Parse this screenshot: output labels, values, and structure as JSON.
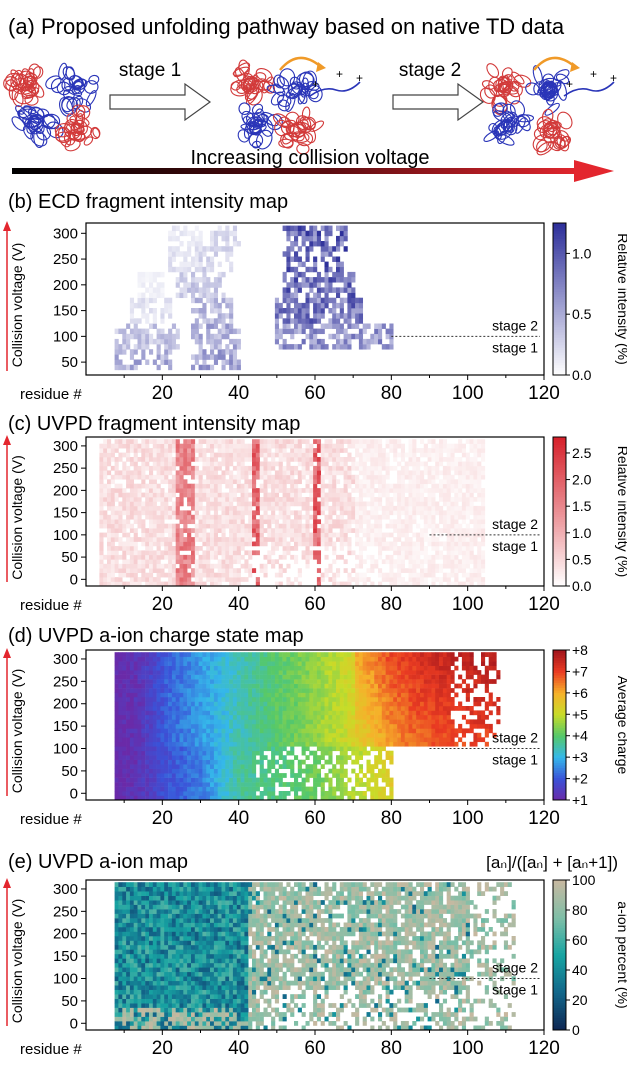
{
  "header": {
    "title": "(a) Proposed unfolding pathway based on native TD data",
    "stage1_label": "stage 1",
    "stage2_label": "stage 2",
    "arrow_label": "Increasing collision voltage"
  },
  "colors": {
    "protein_blue": "#2a35b8",
    "protein_red": "#d23a3a",
    "accent_orange": "#f09a28",
    "voltage_arrow_start": "#000000",
    "voltage_arrow_end": "#e3262e"
  },
  "chart_data": [
    {
      "type": "heatmap",
      "title": "(b) ECD fragment intensity map",
      "ylabel": "Collision voltage (V)",
      "xlabel": "residue #",
      "xlim": [
        0,
        120
      ],
      "ylim": [
        25,
        320
      ],
      "xticks": [
        20,
        40,
        60,
        80,
        100,
        120
      ],
      "yticks": [
        50,
        100,
        150,
        200,
        250,
        300
      ],
      "colorbar": {
        "label": "Relative intensity (%)",
        "min": 0.0,
        "max": 1.25,
        "ticks": [
          0.0,
          0.5,
          1.0
        ],
        "tick_labels": [
          "0.0",
          "0.5",
          "1.0"
        ],
        "colors": [
          "#ffffff",
          "#2d2f9a"
        ]
      },
      "annotations": [
        "stage 2",
        "stage 1"
      ],
      "divider_y": 100,
      "description_rows": [
        {
          "y": 300,
          "bands": [
            [
              22,
              30,
              0.15
            ],
            [
              32,
              40,
              0.25
            ],
            [
              52,
              68,
              1.0
            ]
          ]
        },
        {
          "y": 250,
          "bands": [
            [
              22,
              30,
              0.2
            ],
            [
              30,
              38,
              0.3
            ],
            [
              52,
              68,
              1.0
            ]
          ]
        },
        {
          "y": 200,
          "bands": [
            [
              14,
              20,
              0.1
            ],
            [
              24,
              36,
              0.35
            ],
            [
              52,
              70,
              0.95
            ]
          ]
        },
        {
          "y": 150,
          "bands": [
            [
              12,
              22,
              0.2
            ],
            [
              28,
              38,
              0.45
            ],
            [
              50,
              72,
              0.9
            ]
          ]
        },
        {
          "y": 100,
          "bands": [
            [
              8,
              24,
              0.4
            ],
            [
              28,
              40,
              0.55
            ],
            [
              50,
              80,
              0.7
            ]
          ]
        },
        {
          "y": 50,
          "bands": [
            [
              8,
              22,
              0.55
            ],
            [
              28,
              40,
              0.6
            ]
          ]
        }
      ]
    },
    {
      "type": "heatmap",
      "title": "(c) UVPD fragment intensity map",
      "ylabel": "Collision voltage (V)",
      "xlabel": "residue #",
      "xlim": [
        0,
        120
      ],
      "ylim": [
        -15,
        320
      ],
      "xticks": [
        20,
        40,
        60,
        80,
        100,
        120
      ],
      "yticks": [
        0,
        50,
        100,
        150,
        200,
        250,
        300
      ],
      "colorbar": {
        "label": "Relative intensity (%)",
        "min": 0.0,
        "max": 2.8,
        "ticks": [
          0.0,
          0.5,
          1.0,
          1.5,
          2.0,
          2.5
        ],
        "tick_labels": [
          "0.0",
          "0.5",
          "1.0",
          "1.5",
          "2.0",
          "2.5"
        ],
        "colors": [
          "#ffffff",
          "#d6202a"
        ]
      },
      "annotations": [
        "stage 2",
        "stage 1"
      ],
      "divider_y": 100,
      "hot_columns": [
        [
          24,
          28,
          0.7
        ],
        [
          44,
          45,
          0.85
        ],
        [
          60,
          61,
          0.9
        ]
      ]
    },
    {
      "type": "heatmap",
      "title": "(d) UVPD a-ion charge state map",
      "ylabel": "Collision voltage (V)",
      "xlabel": "residue #",
      "xlim": [
        0,
        120
      ],
      "ylim": [
        -15,
        320
      ],
      "xticks": [
        20,
        40,
        60,
        80,
        100,
        120
      ],
      "yticks": [
        0,
        50,
        100,
        150,
        200,
        250,
        300
      ],
      "colorbar": {
        "label": "Average charge",
        "min": 1,
        "max": 8,
        "ticks": [
          1,
          2,
          3,
          4,
          5,
          6,
          7,
          8
        ],
        "tick_labels": [
          "+1",
          "+2",
          "+3",
          "+4",
          "+5",
          "+6",
          "+7",
          "+8"
        ],
        "colors": [
          "#6a2aa8",
          "#3a52d8",
          "#35b8ea",
          "#55c86a",
          "#c8dc28",
          "#f6b12a",
          "#ea3b22",
          "#a0141c"
        ]
      },
      "annotations": [
        "stage 2",
        "stage 1"
      ],
      "divider_y": 100,
      "charge_profile_high": [
        [
          8,
          1.0
        ],
        [
          14,
          1.3
        ],
        [
          22,
          2.2
        ],
        [
          30,
          2.7
        ],
        [
          40,
          3.4
        ],
        [
          50,
          4.0
        ],
        [
          60,
          4.5
        ],
        [
          70,
          5.2
        ],
        [
          80,
          6.2
        ],
        [
          90,
          6.7
        ],
        [
          100,
          6.9
        ],
        [
          108,
          7.0
        ]
      ],
      "charge_profile_low": [
        [
          8,
          1.0
        ],
        [
          14,
          1.3
        ],
        [
          22,
          2.0
        ],
        [
          30,
          2.4
        ],
        [
          40,
          3.6
        ],
        [
          50,
          3.8
        ],
        [
          60,
          4.2
        ],
        [
          70,
          4.8
        ],
        [
          80,
          5.4
        ]
      ]
    },
    {
      "type": "heatmap",
      "title": "(e) UVPD a-ion map",
      "subtitle": "[aₙ]/([aₙ] + [aₙ+1])",
      "ylabel": "Collision voltage (V)",
      "xlabel": "residue #",
      "xlim": [
        0,
        120
      ],
      "ylim": [
        -15,
        320
      ],
      "xticks": [
        20,
        40,
        60,
        80,
        100,
        120
      ],
      "yticks": [
        0,
        50,
        100,
        150,
        200,
        250,
        300
      ],
      "colorbar": {
        "label": "a-ion percent (%)",
        "min": 0,
        "max": 100,
        "ticks": [
          0,
          20,
          40,
          60,
          80,
          100
        ],
        "tick_labels": [
          "0",
          "20",
          "40",
          "60",
          "80",
          "100"
        ],
        "colors": [
          "#0d2652",
          "#12668a",
          "#17a4a2",
          "#7fbfa7",
          "#c8b8a0"
        ]
      },
      "annotations": [
        "stage 2",
        "stage 1"
      ],
      "divider_y": 100,
      "regions": [
        {
          "x": [
            8,
            42
          ],
          "value_range": [
            20,
            60
          ]
        },
        {
          "x": [
            42,
            100
          ],
          "value_range": [
            75,
            100
          ]
        }
      ]
    }
  ]
}
